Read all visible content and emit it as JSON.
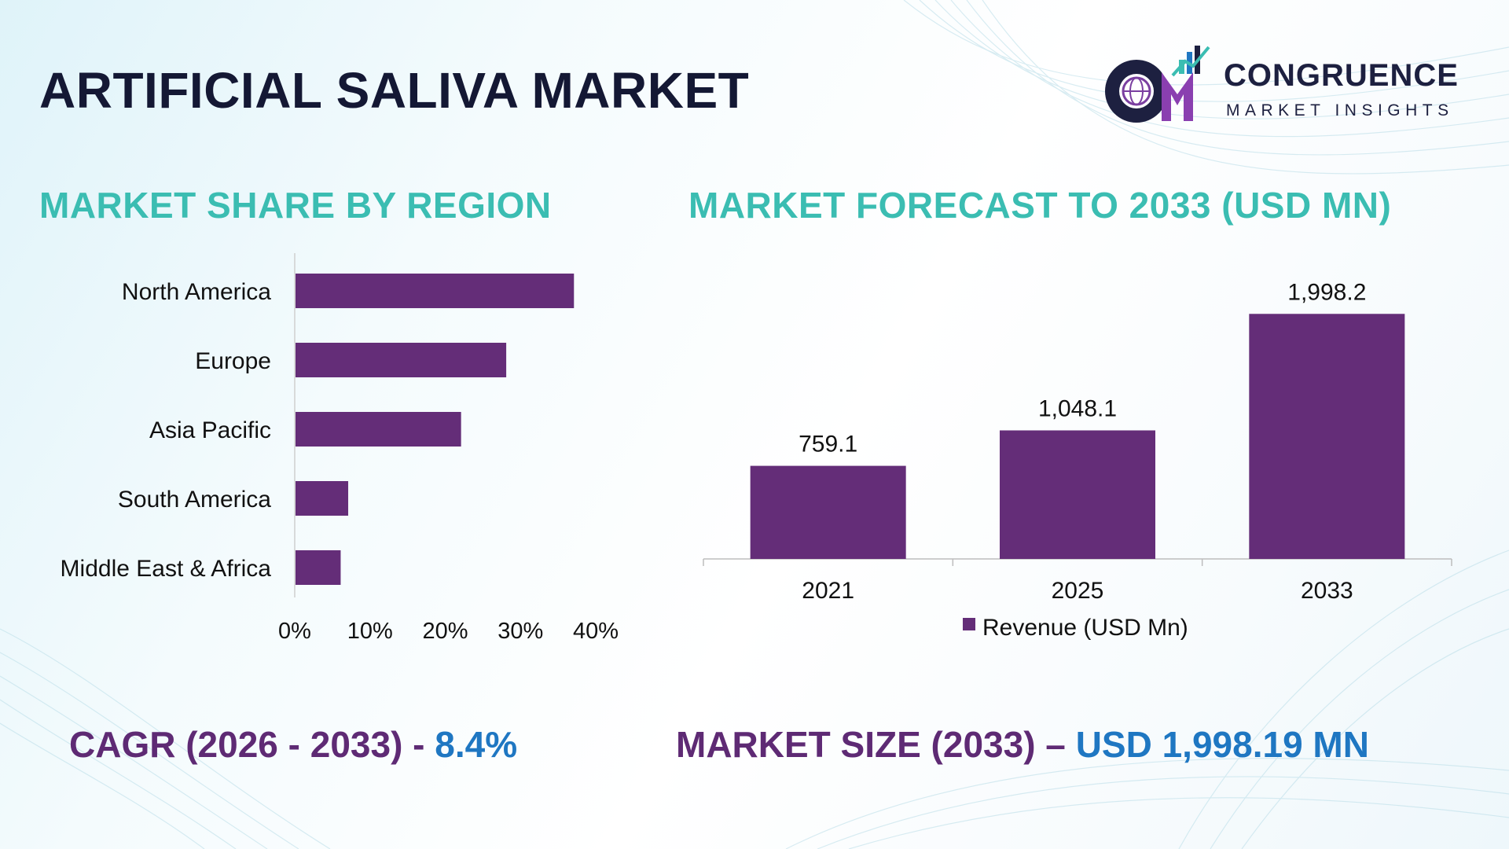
{
  "header": {
    "title": "ARTIFICIAL SALIVA MARKET",
    "logo_name": "CONGRUENCE",
    "logo_sub": "MARKET INSIGHTS"
  },
  "left_section": {
    "title": "MARKET SHARE BY REGION"
  },
  "right_section": {
    "title": "MARKET FORECAST TO 2033 (USD MN)"
  },
  "footer": {
    "cagr_label": "CAGR (2026 - 2033) - ",
    "cagr_value": "8.4%",
    "size_label": "MARKET SIZE (2033) – ",
    "size_value": "USD 1,998.19 MN"
  },
  "colors": {
    "bar": "#642d78",
    "accent_teal": "#3bbdb2",
    "accent_blue": "#1f77c2",
    "heading_dark": "#141834"
  },
  "icons": [
    "globe-icon",
    "bar-chart-icon"
  ],
  "chart_data": [
    {
      "type": "bar",
      "orientation": "horizontal",
      "categories": [
        "North America",
        "Europe",
        "Asia Pacific",
        "South America",
        "Middle East & Africa"
      ],
      "values": [
        37,
        28,
        22,
        7,
        6
      ],
      "unit": "%",
      "xlim": [
        0,
        40
      ],
      "xticks": [
        "0%",
        "10%",
        "20%",
        "30%",
        "40%"
      ],
      "grid": false,
      "legend": "none"
    },
    {
      "type": "bar",
      "orientation": "vertical",
      "categories": [
        "2021",
        "2025",
        "2033"
      ],
      "series": [
        {
          "name": "Revenue (USD Mn)",
          "values": [
            759.1,
            1048.1,
            1998.2
          ],
          "labels": [
            "759.1",
            "1,048.1",
            "1,998.2"
          ]
        }
      ],
      "ylim": [
        0,
        2000
      ],
      "grid": false,
      "legend": "bottom"
    }
  ]
}
